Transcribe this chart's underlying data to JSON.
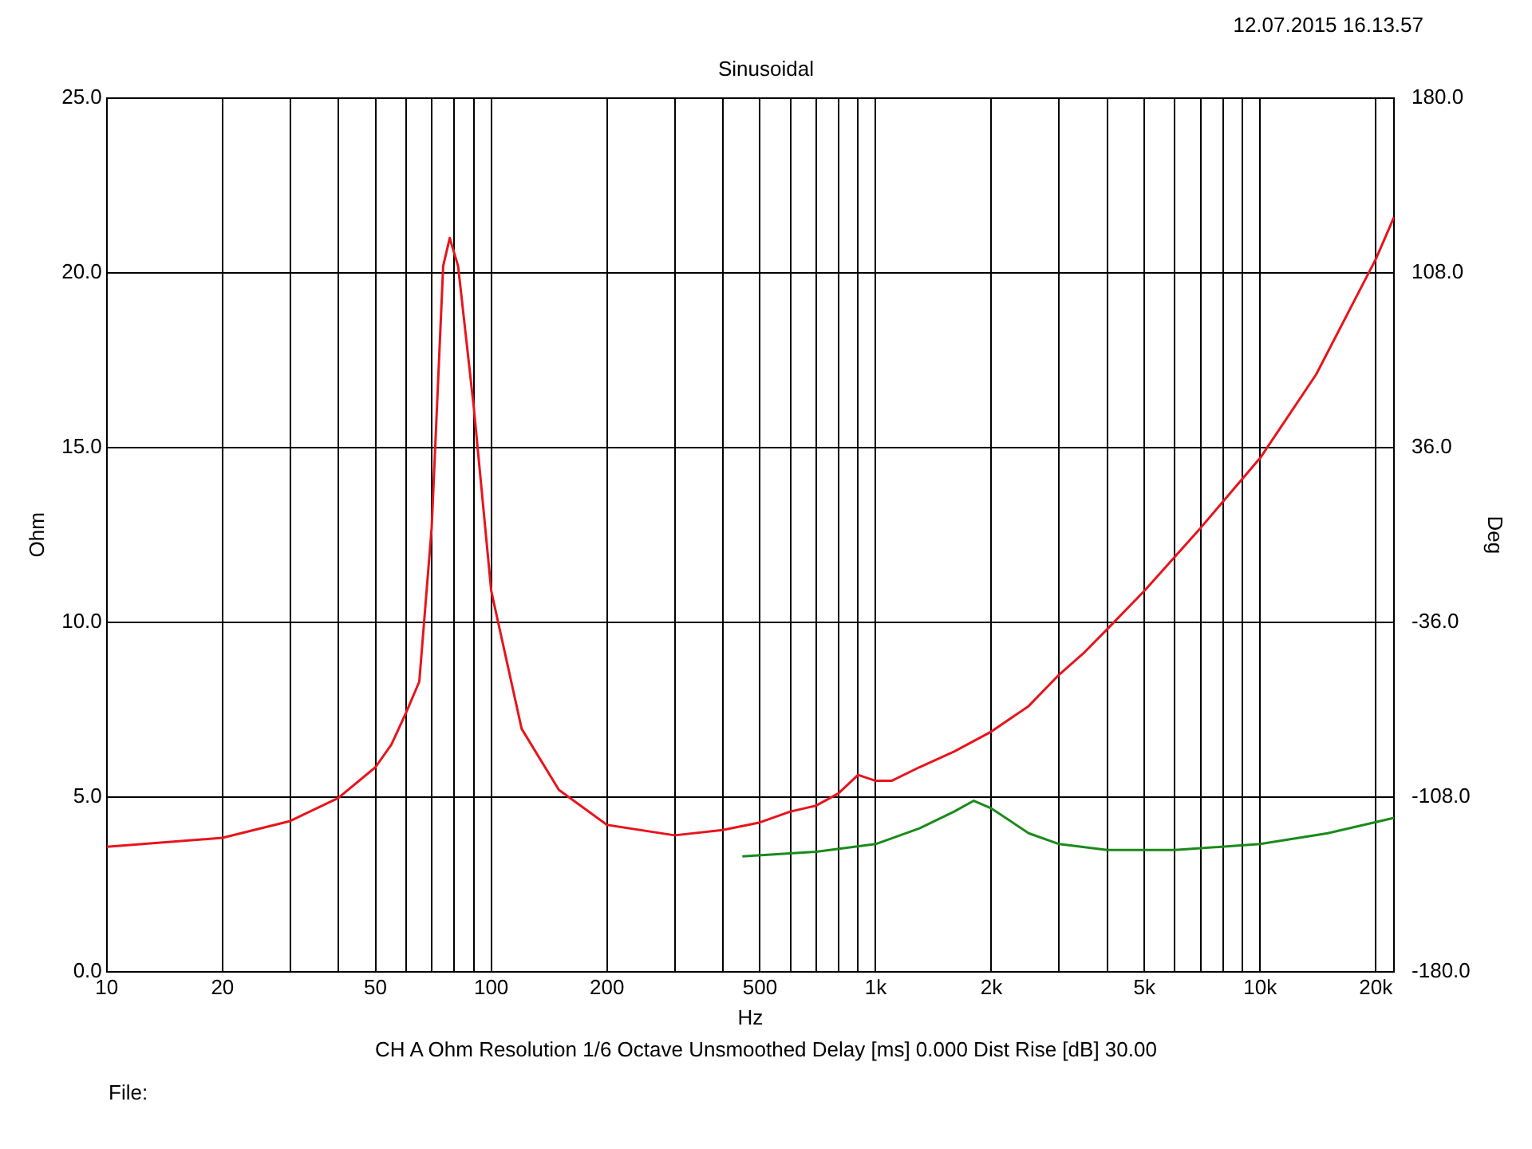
{
  "chart_data": {
    "type": "line",
    "title": "Sinusoidal",
    "xlabel": "Hz",
    "ylabel": "Ohm",
    "y2label": "Deg",
    "annotations": [
      "12.07.2015 16.13.57",
      "CH A   Ohm   Resolution 1/6 Octave   Unsmoothed   Delay [ms] 0.000   Dist Rise [dB] 30.00",
      "File:"
    ],
    "log": "x",
    "grid": true,
    "legend": false,
    "marker": "none",
    "line_style": "solid",
    "xlim": [
      10,
      22300
    ],
    "xticks": [
      10,
      20,
      {
        "value": 30,
        "label": null
      },
      {
        "value": 40,
        "label": null
      },
      50,
      {
        "value": 60,
        "label": null
      },
      {
        "value": 70,
        "label": null
      },
      {
        "value": 80,
        "label": null
      },
      {
        "value": 90,
        "label": null
      },
      100,
      200,
      {
        "value": 300,
        "label": null
      },
      {
        "value": 400,
        "label": null
      },
      500,
      {
        "value": 600,
        "label": null
      },
      {
        "value": 700,
        "label": null
      },
      {
        "value": 800,
        "label": null
      },
      {
        "value": 900,
        "label": null
      },
      {
        "value": 1000,
        "label": "1k"
      },
      {
        "value": 2000,
        "label": "2k"
      },
      {
        "value": 3000,
        "label": null
      },
      {
        "value": 4000,
        "label": null
      },
      {
        "value": 5000,
        "label": "5k"
      },
      {
        "value": 6000,
        "label": null
      },
      {
        "value": 7000,
        "label": null
      },
      {
        "value": 8000,
        "label": null
      },
      {
        "value": 9000,
        "label": null
      },
      {
        "value": 10000,
        "label": "10k"
      },
      {
        "value": 20000,
        "label": "20k"
      }
    ],
    "ylim": [
      0,
      25
    ],
    "yticks": [
      {
        "value": 0,
        "label": "0.0"
      },
      {
        "value": 5,
        "label": "5.0"
      },
      {
        "value": 10,
        "label": "10.0"
      },
      {
        "value": 15,
        "label": "15.0"
      },
      {
        "value": 20,
        "label": "20.0"
      },
      {
        "value": 25,
        "label": "25.0"
      }
    ],
    "y2lim": [
      -180,
      180
    ],
    "y2ticks": [
      {
        "value": -180,
        "label": "-180.0"
      },
      {
        "value": -108,
        "label": "-108.0"
      },
      {
        "value": -36,
        "label": "-36.0"
      },
      {
        "value": 36,
        "label": "36.0"
      },
      {
        "value": 108,
        "label": "108.0"
      },
      {
        "value": 180,
        "label": "180.0"
      }
    ],
    "series": [
      {
        "color": "#e8141c",
        "x": [
          10,
          20,
          30,
          40,
          50,
          55,
          60,
          65,
          70,
          75,
          78,
          82,
          90,
          100,
          120,
          150,
          200,
          300,
          400,
          500,
          600,
          700,
          800,
          900,
          1000,
          1100,
          1300,
          1600,
          2000,
          2500,
          3000,
          3500,
          4000,
          5000,
          7000,
          10000,
          14000,
          20000,
          22300
        ],
        "values": [
          3.57,
          3.83,
          4.31,
          4.97,
          5.85,
          6.5,
          7.4,
          8.3,
          12.7,
          20.2,
          21.0,
          20.2,
          16.2,
          10.9,
          6.95,
          5.2,
          4.2,
          3.9,
          4.05,
          4.27,
          4.58,
          4.75,
          5.1,
          5.63,
          5.46,
          5.46,
          5.85,
          6.3,
          6.87,
          7.6,
          8.5,
          9.15,
          9.8,
          10.9,
          12.7,
          14.7,
          17.1,
          20.4,
          21.6
        ]
      },
      {
        "color": "#1a8a1a",
        "x": [
          450,
          700,
          1000,
          1300,
          1600,
          1800,
          2000,
          2500,
          3000,
          4000,
          6000,
          10000,
          15000,
          22300
        ],
        "values": [
          3.3,
          3.43,
          3.65,
          4.1,
          4.58,
          4.89,
          4.67,
          3.96,
          3.65,
          3.48,
          3.48,
          3.65,
          3.96,
          4.4
        ]
      }
    ]
  }
}
